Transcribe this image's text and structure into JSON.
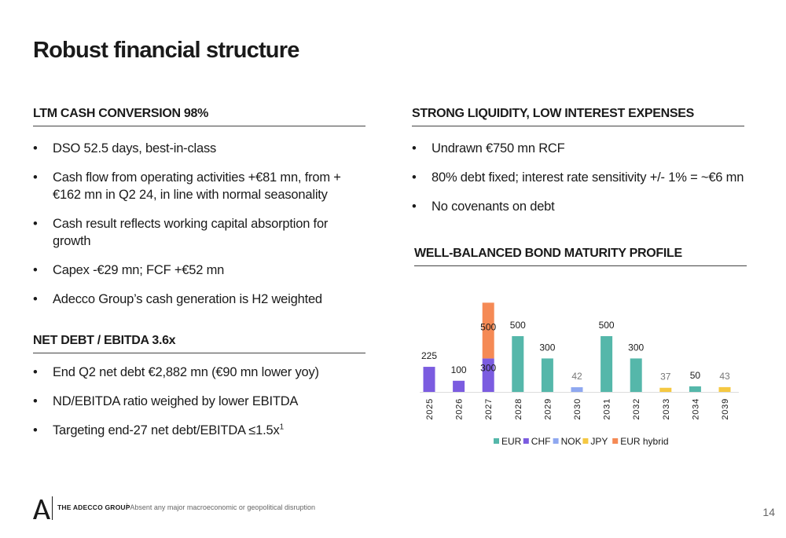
{
  "title": "Robust financial structure",
  "left": {
    "section1": {
      "heading": "LTM CASH CONVERSION 98%",
      "bullets": [
        "DSO 52.5 days, best-in-class",
        "Cash flow from operating activities +€81 mn, from +€162 mn in Q2 24, in line with normal seasonality",
        "Cash result reflects working capital absorption for growth",
        "Capex -€29 mn; FCF +€52 mn",
        "Adecco Group’s cash generation is H2 weighted"
      ]
    },
    "section2": {
      "heading": "NET DEBT / EBITDA 3.6x",
      "bullets": [
        "End Q2 net debt €2,882 mn (€90 mn lower yoy)",
        "ND/EBITDA ratio weighed by lower EBITDA",
        "Targeting end-27 net debt/EBITDA ≤1.5x"
      ],
      "footnote_marker": "1"
    }
  },
  "right": {
    "section1": {
      "heading": "STRONG LIQUIDITY, LOW INTEREST EXPENSES",
      "bullets": [
        "Undrawn €750 mn RCF",
        "80% debt fixed; interest rate sensitivity +/- 1% = ~€6 mn",
        "No covenants on debt"
      ]
    },
    "section2": {
      "heading": "WELL-BALANCED BOND MATURITY PROFILE"
    }
  },
  "chart_data": {
    "type": "bar",
    "stacked": true,
    "categories": [
      "2025",
      "2026",
      "2027",
      "2028",
      "2029",
      "2030",
      "2031",
      "2032",
      "2033",
      "2034",
      "2039"
    ],
    "series": [
      {
        "name": "EUR",
        "color": "#55B7AA",
        "values": [
          0,
          0,
          0,
          500,
          300,
          0,
          500,
          300,
          0,
          50,
          0
        ]
      },
      {
        "name": "CHF",
        "color": "#7B5CE0",
        "values": [
          225,
          100,
          300,
          0,
          0,
          0,
          0,
          0,
          0,
          0,
          0
        ]
      },
      {
        "name": "NOK",
        "color": "#8FA8F0",
        "values": [
          0,
          0,
          0,
          0,
          0,
          42,
          0,
          0,
          0,
          0,
          0
        ]
      },
      {
        "name": "JPY",
        "color": "#F5C842",
        "values": [
          0,
          0,
          0,
          0,
          0,
          0,
          0,
          0,
          37,
          0,
          43
        ]
      },
      {
        "name": "EUR hybrid",
        "color": "#F58A55",
        "values": [
          0,
          0,
          500,
          0,
          0,
          0,
          0,
          0,
          0,
          0,
          0
        ]
      }
    ],
    "data_labels": [
      "225",
      "100",
      "300",
      "500",
      "500",
      "300",
      "42",
      "500",
      "300",
      "37",
      "50",
      "43"
    ],
    "ylim": [
      0,
      800
    ],
    "legend_position": "bottom"
  },
  "footer": {
    "brand": "THE ADECCO GROUP",
    "footnote_marker": "1",
    "footnote": "Absent any major macroeconomic or geopolitical disruption",
    "page_number": "14"
  }
}
